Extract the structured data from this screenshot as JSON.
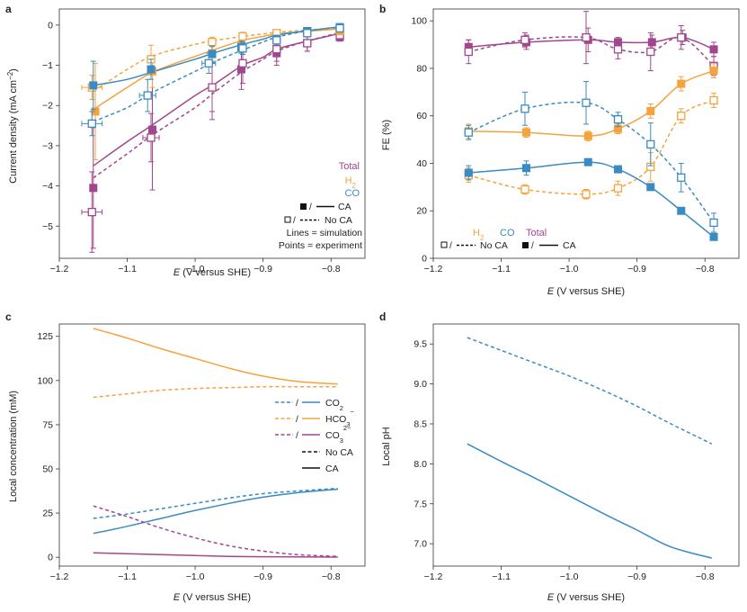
{
  "colors": {
    "co": "#3a8bc2",
    "h2": "#f5a33c",
    "total": "#a0478f",
    "black": "#111111"
  },
  "chart_data": [
    {
      "panel": "a",
      "type": "line",
      "xlabel": "E (V versus SHE)",
      "ylabel_main": "Current density (mA cm",
      "ylabel_sup": "−2",
      "ylabel_end": ")",
      "xlim": [
        -1.2,
        -0.75
      ],
      "ylim": [
        -5.8,
        0.4
      ],
      "xticks": [
        -1.2,
        -1.1,
        -1.0,
        -0.9,
        -0.8
      ],
      "xtick_labels": [
        "−1.2",
        "−1.1",
        "−1.0",
        "−0.9",
        "−0.8"
      ],
      "yticks": [
        0,
        -1,
        -2,
        -3,
        -4,
        -5
      ],
      "ytick_labels": [
        "0",
        "−1",
        "−2",
        "−3",
        "−4",
        "−5"
      ],
      "series": [
        {
          "name": "Total",
          "color_key": "total",
          "kind": "sim",
          "dash": false,
          "x": [
            -1.15,
            -1.1,
            -1.06,
            -1.0,
            -0.97,
            -0.93,
            -0.9,
            -0.88,
            -0.84,
            -0.79
          ],
          "y": [
            -3.5,
            -2.9,
            -2.45,
            -1.75,
            -1.45,
            -1.0,
            -0.8,
            -0.6,
            -0.42,
            -0.22
          ]
        },
        {
          "name": "Total",
          "color_key": "total",
          "kind": "sim",
          "dash": true,
          "x": [
            -1.15,
            -1.1,
            -1.06,
            -1.0,
            -0.97,
            -0.93,
            -0.9,
            -0.88,
            -0.84,
            -0.79
          ],
          "y": [
            -3.8,
            -3.2,
            -2.7,
            -2.05,
            -1.65,
            -1.15,
            -0.85,
            -0.65,
            -0.42,
            -0.2
          ]
        },
        {
          "name": "H2",
          "color_key": "h2",
          "kind": "sim",
          "dash": false,
          "x": [
            -1.15,
            -1.1,
            -1.06,
            -1.0,
            -0.97,
            -0.93,
            -0.9,
            -0.88,
            -0.84,
            -0.79
          ],
          "y": [
            -2.1,
            -1.55,
            -1.15,
            -0.78,
            -0.6,
            -0.38,
            -0.28,
            -0.22,
            -0.16,
            -0.1
          ]
        },
        {
          "name": "H2",
          "color_key": "h2",
          "kind": "sim",
          "dash": true,
          "x": [
            -1.15,
            -1.1,
            -1.06,
            -1.0,
            -0.97,
            -0.93,
            -0.9,
            -0.88,
            -0.84,
            -0.79
          ],
          "y": [
            -1.65,
            -1.1,
            -0.75,
            -0.48,
            -0.38,
            -0.28,
            -0.22,
            -0.18,
            -0.13,
            -0.08
          ]
        },
        {
          "name": "CO",
          "color_key": "co",
          "kind": "sim",
          "dash": false,
          "x": [
            -1.15,
            -1.1,
            -1.06,
            -1.0,
            -0.97,
            -0.93,
            -0.9,
            -0.88,
            -0.84,
            -0.79
          ],
          "y": [
            -1.5,
            -1.35,
            -1.15,
            -0.85,
            -0.68,
            -0.48,
            -0.35,
            -0.25,
            -0.15,
            -0.05
          ]
        },
        {
          "name": "CO",
          "color_key": "co",
          "kind": "sim",
          "dash": true,
          "x": [
            -1.15,
            -1.1,
            -1.06,
            -1.0,
            -0.97,
            -0.93,
            -0.9,
            -0.88,
            -0.84,
            -0.79
          ],
          "y": [
            -2.4,
            -2.05,
            -1.65,
            -1.15,
            -0.9,
            -0.62,
            -0.42,
            -0.3,
            -0.16,
            -0.05
          ]
        },
        {
          "name": "Total",
          "color_key": "total",
          "kind": "exp",
          "filled": true,
          "x": [
            -1.15,
            -1.063,
            -0.975,
            -0.932,
            -0.88,
            -0.835,
            -0.787
          ],
          "y": [
            -4.05,
            -2.6,
            -1.55,
            -1.1,
            -0.7,
            -0.45,
            -0.3
          ],
          "yerr": [
            1.5,
            1.5,
            0.6,
            0.5,
            0.3,
            0.2,
            0.1
          ],
          "xerr": [
            0,
            0,
            0,
            0,
            0,
            0,
            0
          ]
        },
        {
          "name": "Total",
          "color_key": "total",
          "kind": "exp",
          "filled": false,
          "x": [
            -1.152,
            -1.065,
            -0.975,
            -0.93,
            -0.88,
            -0.835,
            -0.787
          ],
          "y": [
            -4.65,
            -2.8,
            -1.55,
            -0.95,
            -0.6,
            -0.45,
            -0.25
          ],
          "yerr": [
            1.0,
            0.6,
            0.8,
            0.5,
            0.3,
            0.2,
            0.1
          ],
          "xerr": [
            0.015,
            0.012,
            0,
            0,
            0,
            0,
            0
          ]
        },
        {
          "name": "H2",
          "color_key": "h2",
          "kind": "exp",
          "filled": true,
          "x": [
            -1.147,
            -1.063,
            -0.975,
            -0.932,
            -0.88,
            -0.835,
            -0.787
          ],
          "y": [
            -2.15,
            -1.15,
            -0.7,
            -0.5,
            -0.3,
            -0.2,
            -0.15
          ],
          "yerr": [
            1.2,
            0.4,
            0.2,
            0.15,
            0.1,
            0.1,
            0.05
          ],
          "xerr": [
            0,
            0,
            0,
            0,
            0,
            0,
            0
          ]
        },
        {
          "name": "H2",
          "color_key": "h2",
          "kind": "exp",
          "filled": false,
          "x": [
            -1.152,
            -1.065,
            -0.975,
            -0.93,
            -0.88,
            -0.835,
            -0.787
          ],
          "y": [
            -1.55,
            -0.85,
            -0.42,
            -0.28,
            -0.2,
            -0.15,
            -0.1
          ],
          "yerr": [
            0.3,
            0.35,
            0.12,
            0.1,
            0.08,
            0.06,
            0.05
          ],
          "xerr": [
            0.015,
            0,
            0,
            0,
            0,
            0,
            0
          ]
        },
        {
          "name": "CO",
          "color_key": "co",
          "kind": "exp",
          "filled": true,
          "x": [
            -1.15,
            -1.065,
            -0.975,
            -0.932,
            -0.88,
            -0.835,
            -0.787
          ],
          "y": [
            -1.5,
            -1.1,
            -0.72,
            -0.55,
            -0.35,
            -0.15,
            -0.05
          ],
          "yerr": [
            0.6,
            0.25,
            0.2,
            0.15,
            0.1,
            0.05,
            0.05
          ],
          "xerr": [
            0,
            0,
            0,
            0,
            0,
            0,
            0
          ]
        },
        {
          "name": "CO",
          "color_key": "co",
          "kind": "exp",
          "filled": false,
          "x": [
            -1.152,
            -1.07,
            -0.98,
            -0.93,
            -0.88,
            -0.835,
            -0.787
          ],
          "y": [
            -2.45,
            -1.75,
            -0.95,
            -0.58,
            -0.38,
            -0.2,
            -0.08
          ],
          "yerr": [
            0.3,
            0.4,
            0.25,
            0.15,
            0.1,
            0.08,
            0.05
          ],
          "xerr": [
            0.015,
            0.012,
            0.01,
            0,
            0,
            0,
            0
          ]
        }
      ],
      "legend": {
        "total": "Total",
        "h2": "H",
        "h2_sub": "2",
        "co": "CO",
        "ca": "CA",
        "noca": "No CA",
        "lines": "Lines = simulation",
        "points": "Points = experiment"
      }
    },
    {
      "panel": "b",
      "type": "line",
      "xlabel": "E (V versus SHE)",
      "ylabel": "FE (%)",
      "xlim": [
        -1.2,
        -0.75
      ],
      "ylim": [
        0,
        105
      ],
      "xticks": [
        -1.2,
        -1.1,
        -1.0,
        -0.9,
        -0.8
      ],
      "xtick_labels": [
        "−1.2",
        "−1.1",
        "−1.0",
        "−0.9",
        "−0.8"
      ],
      "yticks": [
        0,
        20,
        40,
        60,
        80,
        100
      ],
      "ytick_labels": [
        "0",
        "20",
        "40",
        "60",
        "80",
        "100"
      ],
      "series": [
        {
          "name": "Total",
          "color_key": "total",
          "kind": "exp",
          "filled": true,
          "x": [
            -1.148,
            -1.063,
            -0.972,
            -0.928,
            -0.878,
            -0.833,
            -0.787
          ],
          "y": [
            89,
            91,
            92,
            91,
            91,
            93,
            88
          ],
          "yerr": [
            3,
            3,
            5,
            2,
            3,
            3,
            3
          ],
          "smooth": true,
          "dash": false
        },
        {
          "name": "Total",
          "color_key": "total",
          "kind": "exp",
          "filled": false,
          "x": [
            -1.148,
            -1.065,
            -0.975,
            -0.928,
            -0.88,
            -0.835,
            -0.787
          ],
          "y": [
            87,
            92,
            93,
            88,
            87,
            93,
            81
          ],
          "yerr": [
            5,
            3,
            11,
            4,
            8,
            5,
            4
          ],
          "smooth": true,
          "dash": true
        },
        {
          "name": "H2",
          "color_key": "h2",
          "kind": "exp",
          "filled": true,
          "x": [
            -1.148,
            -1.063,
            -0.972,
            -0.928,
            -0.88,
            -0.835,
            -0.787
          ],
          "y": [
            53.5,
            53,
            51.5,
            54.5,
            62,
            73.5,
            79
          ],
          "yerr": [
            3,
            2,
            2,
            2,
            3,
            3,
            3
          ],
          "smooth": true,
          "dash": false
        },
        {
          "name": "H2",
          "color_key": "h2",
          "kind": "exp",
          "filled": false,
          "x": [
            -1.148,
            -1.065,
            -0.975,
            -0.928,
            -0.88,
            -0.835,
            -0.787
          ],
          "y": [
            35,
            29,
            27,
            29.5,
            38.5,
            60,
            66.5
          ],
          "yerr": [
            3,
            2,
            2,
            3,
            6,
            3,
            3
          ],
          "smooth": true,
          "dash": true
        },
        {
          "name": "CO",
          "color_key": "co",
          "kind": "exp",
          "filled": true,
          "x": [
            -1.148,
            -1.063,
            -0.972,
            -0.928,
            -0.88,
            -0.835,
            -0.787
          ],
          "y": [
            36,
            38,
            40.5,
            37.5,
            30,
            20,
            9
          ],
          "yerr": [
            3,
            3,
            1,
            1,
            1,
            1,
            1
          ],
          "smooth": true,
          "dash": false
        },
        {
          "name": "CO",
          "color_key": "co",
          "kind": "exp",
          "filled": false,
          "x": [
            -1.148,
            -1.065,
            -0.975,
            -0.928,
            -0.88,
            -0.835,
            -0.787
          ],
          "y": [
            53,
            63,
            65.5,
            58.5,
            48,
            34,
            15
          ],
          "yerr": [
            3,
            7,
            9,
            3,
            9,
            6,
            4
          ],
          "smooth": true,
          "dash": true
        }
      ],
      "legend": {
        "h2": "H",
        "h2_sub": "2",
        "co": "CO",
        "total": "Total",
        "noca": "No CA",
        "ca": "CA"
      }
    },
    {
      "panel": "c",
      "type": "line",
      "xlabel": "E (V versus SHE)",
      "ylabel": "Local concentration (mM)",
      "xlim": [
        -1.2,
        -0.75
      ],
      "ylim": [
        -5,
        132
      ],
      "xticks": [
        -1.2,
        -1.1,
        -1.0,
        -0.9,
        -0.8
      ],
      "xtick_labels": [
        "−1.2",
        "−1.1",
        "−1.0",
        "−0.9",
        "−0.8"
      ],
      "yticks": [
        0,
        25,
        50,
        75,
        100,
        125
      ],
      "ytick_labels": [
        "0",
        "25",
        "50",
        "75",
        "100",
        "125"
      ],
      "series": [
        {
          "name": "HCO3- CA",
          "color_key": "h2",
          "dash": false,
          "x": [
            -1.15,
            -1.1,
            -1.05,
            -1.0,
            -0.95,
            -0.9,
            -0.85,
            -0.79
          ],
          "y": [
            129.5,
            124,
            118,
            112.5,
            107,
            102.5,
            99.5,
            98
          ]
        },
        {
          "name": "HCO3- No CA",
          "color_key": "h2",
          "dash": true,
          "x": [
            -1.15,
            -1.1,
            -1.05,
            -1.0,
            -0.95,
            -0.9,
            -0.85,
            -0.79
          ],
          "y": [
            90.5,
            92.5,
            94.5,
            95.5,
            96,
            96.5,
            96.5,
            96.5
          ]
        },
        {
          "name": "CO2 CA",
          "color_key": "co",
          "dash": false,
          "x": [
            -1.15,
            -1.1,
            -1.05,
            -1.0,
            -0.95,
            -0.9,
            -0.85,
            -0.79
          ],
          "y": [
            13.5,
            17.5,
            22,
            26.5,
            30.5,
            34,
            36.5,
            38.5
          ]
        },
        {
          "name": "CO2 No CA",
          "color_key": "co",
          "dash": true,
          "x": [
            -1.15,
            -1.1,
            -1.05,
            -1.0,
            -0.95,
            -0.9,
            -0.85,
            -0.79
          ],
          "y": [
            22,
            24.5,
            27.5,
            30.5,
            33.5,
            36,
            37.5,
            39
          ]
        },
        {
          "name": "CO3 No CA",
          "color_key": "total",
          "dash": true,
          "x": [
            -1.15,
            -1.1,
            -1.05,
            -1.0,
            -0.95,
            -0.9,
            -0.85,
            -0.79
          ],
          "y": [
            29,
            23,
            16.5,
            11,
            6.5,
            3.5,
            1.5,
            0.5
          ]
        },
        {
          "name": "CO3 CA",
          "color_key": "total",
          "dash": false,
          "x": [
            -1.15,
            -1.1,
            -1.05,
            -1.0,
            -0.95,
            -0.9,
            -0.85,
            -0.79
          ],
          "y": [
            2.5,
            2,
            1.5,
            1,
            0.5,
            0.3,
            0.2,
            0.1
          ]
        }
      ],
      "legend": {
        "slash": "/",
        "co2": "CO",
        "co2_sub": "2",
        "hco3": "HCO",
        "hco3_sub": "3",
        "hco3_sup": "−",
        "co3": "CO",
        "co3_sub": "3",
        "co3_sup": "2−",
        "noca": "No CA",
        "ca": "CA"
      }
    },
    {
      "panel": "d",
      "type": "line",
      "xlabel": "E (V versus SHE)",
      "ylabel": "Local pH",
      "xlim": [
        -1.2,
        -0.75
      ],
      "ylim": [
        6.72,
        9.75
      ],
      "xticks": [
        -1.2,
        -1.1,
        -1.0,
        -0.9,
        -0.8
      ],
      "xtick_labels": [
        "−1.2",
        "−1.1",
        "−1.0",
        "−0.9",
        "−0.8"
      ],
      "yticks": [
        7.0,
        7.5,
        8.0,
        8.5,
        9.0,
        9.5
      ],
      "ytick_labels": [
        "7.0",
        "7.5",
        "8.0",
        "8.5",
        "9.0",
        "9.5"
      ],
      "series": [
        {
          "name": "No CA",
          "color_key": "co",
          "dash": true,
          "x": [
            -1.15,
            -1.1,
            -1.05,
            -1.0,
            -0.95,
            -0.9,
            -0.85,
            -0.79
          ],
          "y": [
            9.58,
            9.42,
            9.26,
            9.1,
            8.92,
            8.72,
            8.5,
            8.25
          ]
        },
        {
          "name": "CA",
          "color_key": "co",
          "dash": false,
          "x": [
            -1.15,
            -1.1,
            -1.05,
            -1.0,
            -0.95,
            -0.9,
            -0.85,
            -0.79
          ],
          "y": [
            8.25,
            8.03,
            7.82,
            7.6,
            7.38,
            7.17,
            6.96,
            6.82
          ]
        }
      ]
    }
  ]
}
